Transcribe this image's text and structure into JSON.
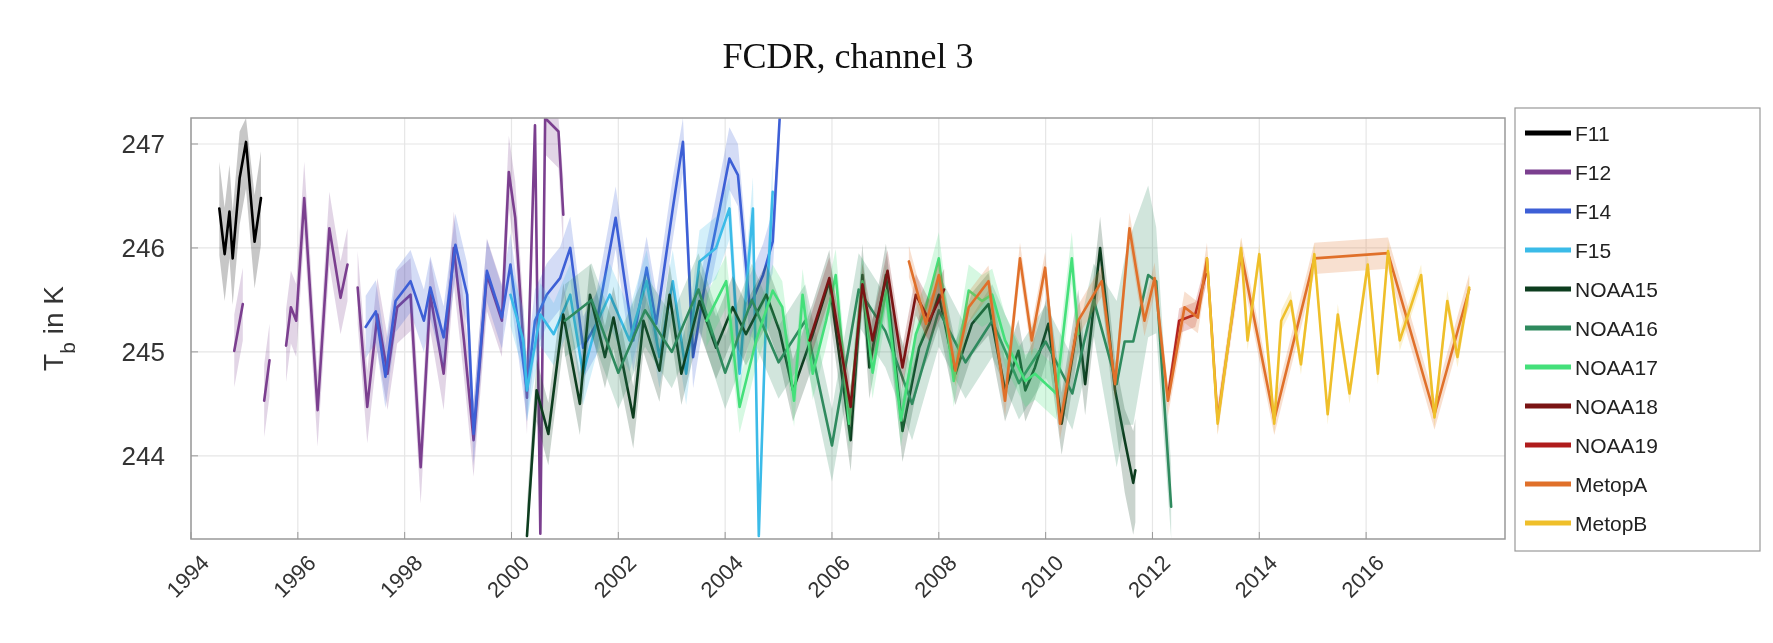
{
  "chart_data": {
    "type": "line",
    "title": "FCDR, channel 3",
    "ylabel": "T$_{b}$ in K",
    "xlim": [
      1994,
      2018.6
    ],
    "ylim": [
      243.2,
      247.25
    ],
    "xticks": [
      1994,
      1996,
      1998,
      2000,
      2002,
      2004,
      2006,
      2008,
      2010,
      2012,
      2014,
      2016
    ],
    "yticks": [
      244,
      245,
      246,
      247
    ],
    "grid": true,
    "legend": "right",
    "line_style": "solid",
    "marker": "none",
    "series": [
      {
        "name": "F11",
        "color": "#000000",
        "x": [
          1994.53,
          1994.63,
          1994.72,
          1994.78,
          1994.91,
          1995.03,
          1995.19,
          1995.31
        ],
        "values": [
          246.38,
          245.94,
          246.35,
          245.9,
          246.67,
          247.02,
          246.06,
          246.48
        ],
        "lower": [
          245.93,
          245.49,
          245.9,
          245.45,
          246.22,
          246.57,
          245.61,
          246.03
        ],
        "upper": [
          246.83,
          246.39,
          246.8,
          246.35,
          247.12,
          247.25,
          246.51,
          246.93
        ]
      },
      {
        "name": "F12",
        "color": "#7b3f8f",
        "x": [
          1994.81,
          1994.97,
          1995.2,
          1995.37,
          1995.47,
          1995.6,
          1995.78,
          1995.87,
          1995.97,
          1996.12,
          1996.37,
          1996.59,
          1996.8,
          1996.93,
          1997.0,
          1997.12,
          1997.3,
          1997.49,
          1997.68,
          1997.86,
          1998.11,
          1998.3,
          1998.48,
          1998.73,
          1998.92,
          1999.11,
          1999.29,
          1999.54,
          1999.82,
          1999.95,
          2000.07,
          2000.29,
          2000.44,
          2000.54,
          2000.63,
          2000.88,
          2000.97
        ],
        "values": [
          245.01,
          245.46,
          null,
          244.53,
          244.92,
          null,
          245.06,
          245.43,
          245.3,
          246.48,
          244.44,
          246.19,
          245.52,
          245.84,
          null,
          245.62,
          244.47,
          245.36,
          244.79,
          245.43,
          245.55,
          243.89,
          245.55,
          244.79,
          246.0,
          245.11,
          244.15,
          245.74,
          245.3,
          246.73,
          246.29,
          244.56,
          247.18,
          243.25,
          247.25,
          247.12,
          246.32
        ],
        "lower": [
          244.66,
          245.11,
          null,
          244.18,
          244.57,
          null,
          244.71,
          245.08,
          244.95,
          246.13,
          244.09,
          245.84,
          245.17,
          245.49,
          null,
          245.27,
          244.12,
          245.01,
          244.44,
          245.08,
          245.2,
          243.54,
          245.2,
          244.44,
          245.65,
          244.76,
          243.8,
          245.39,
          244.95,
          246.38,
          245.94,
          244.21,
          246.83,
          243.2,
          246.9,
          246.77,
          245.97
        ],
        "upper": [
          245.36,
          245.81,
          null,
          244.88,
          245.27,
          null,
          245.41,
          245.78,
          245.65,
          246.83,
          244.79,
          246.54,
          245.87,
          246.19,
          null,
          245.97,
          244.82,
          245.71,
          245.14,
          245.78,
          245.9,
          244.24,
          245.9,
          245.14,
          246.35,
          245.46,
          244.5,
          246.09,
          245.65,
          247.08,
          246.64,
          244.91,
          247.25,
          243.6,
          247.25,
          247.25,
          246.67
        ]
      },
      {
        "name": "F14",
        "color": "#3d5fd6",
        "x": [
          1997.27,
          1997.46,
          1997.64,
          1997.83,
          1998.11,
          1998.36,
          1998.48,
          1998.73,
          1998.95,
          1999.17,
          1999.29,
          1999.54,
          1999.82,
          1999.98,
          2000.29,
          2000.44,
          2000.66,
          2000.91,
          2001.1,
          2001.34,
          2001.59,
          2001.95,
          2002.28,
          2002.53,
          2002.71,
          2003.02,
          2003.21,
          2003.4,
          2003.65,
          2003.9,
          2004.08,
          2004.24,
          2004.46,
          2004.71,
          2004.89,
          2005.02
        ],
        "values": [
          245.24,
          245.39,
          244.76,
          245.49,
          245.68,
          245.3,
          245.62,
          245.14,
          246.03,
          245.55,
          244.21,
          245.78,
          245.33,
          245.84,
          244.63,
          245.3,
          245.55,
          245.71,
          246.0,
          245.04,
          245.27,
          246.29,
          245.11,
          245.81,
          245.27,
          246.38,
          247.02,
          244.95,
          245.74,
          246.38,
          246.86,
          246.7,
          245.43,
          245.74,
          246.06,
          247.24
        ],
        "lower": [
          244.94,
          245.09,
          244.46,
          245.19,
          245.38,
          245,
          245.32,
          244.84,
          245.73,
          245.25,
          243.91,
          245.48,
          245.03,
          245.54,
          244.33,
          245,
          245.25,
          245.41,
          245.7,
          244.74,
          244.97,
          245.99,
          244.81,
          245.51,
          244.97,
          246.08,
          246.72,
          244.65,
          245.44,
          246.08,
          246.56,
          246.4,
          245.13,
          245.44,
          245.76,
          246.94
        ],
        "upper": [
          245.54,
          245.69,
          245.06,
          245.79,
          245.98,
          245.6,
          245.92,
          245.44,
          246.33,
          245.85,
          244.51,
          246.08,
          245.63,
          246.14,
          244.93,
          245.6,
          245.85,
          246.01,
          246.3,
          245.34,
          245.57,
          246.59,
          245.41,
          246.11,
          245.57,
          246.68,
          247.25,
          245.25,
          246.04,
          246.68,
          247.16,
          247,
          245.73,
          246.04,
          246.36,
          247.25
        ]
      },
      {
        "name": "F15",
        "color": "#3bbbe8",
        "x": [
          1999.98,
          2000.22,
          2000.29,
          2000.54,
          2000.79,
          2001.1,
          2001.34,
          2001.59,
          2001.84,
          2002.21,
          2002.53,
          2002.77,
          2003.02,
          2003.27,
          2003.52,
          2003.83,
          2004.08,
          2004.27,
          2004.52,
          2004.63,
          2004.77,
          2004.89
        ],
        "values": [
          245.55,
          245.11,
          244.63,
          245.36,
          245.17,
          245.55,
          244.79,
          245.27,
          245.55,
          245.11,
          245.68,
          244.95,
          245.68,
          244.79,
          245.87,
          246.0,
          246.38,
          244.79,
          246.38,
          243.23,
          245.43,
          246.54
        ],
        "lower": [
          245.25,
          244.81,
          244.33,
          245.06,
          244.87,
          245.25,
          244.49,
          244.97,
          245.25,
          244.81,
          245.38,
          244.65,
          245.38,
          244.49,
          245.57,
          245.7,
          246.08,
          244.49,
          246.08,
          243.2,
          245.13,
          246.24
        ],
        "upper": [
          245.85,
          245.41,
          244.93,
          245.66,
          245.47,
          245.85,
          245.09,
          245.57,
          245.85,
          245.41,
          245.98,
          245.25,
          245.98,
          245.09,
          246.17,
          246.3,
          246.68,
          245.09,
          246.68,
          243.53,
          245.73,
          246.84
        ]
      },
      {
        "name": "NOAA15",
        "color": "#0d3d1f",
        "x": [
          2000.29,
          2000.47,
          2000.69,
          2000.97,
          2001.28,
          2001.47,
          2001.75,
          2001.91,
          2002.28,
          2002.47,
          2002.77,
          2002.96,
          2003.18,
          2003.52,
          2003.83,
          2004.14,
          2004.39,
          2004.77,
          2005.02,
          2005.27,
          2005.64,
          2005.95,
          2006.35,
          2006.57,
          2006.7,
          2007.01,
          2007.32,
          2007.63,
          2007.82,
          2008.0,
          2008.31,
          2008.62,
          2008.93,
          2009.24,
          2009.49,
          2009.62,
          2009.8,
          2010.05,
          2010.3,
          2010.61,
          2010.74,
          2011.02,
          2011.3,
          2011.48,
          2011.64,
          2011.68
        ],
        "values": [
          243.23,
          244.63,
          244.21,
          245.36,
          244.5,
          245.55,
          244.95,
          245.33,
          244.37,
          245.3,
          244.82,
          245.55,
          244.79,
          245.49,
          245.04,
          245.43,
          245.17,
          245.55,
          245.2,
          244.63,
          245.17,
          245.68,
          244.15,
          245.74,
          244.85,
          245.74,
          244.24,
          245.04,
          245.27,
          245.55,
          244.79,
          245.27,
          245.46,
          244.63,
          245.01,
          244.63,
          244.85,
          245.27,
          244.31,
          245.3,
          244.69,
          246.0,
          244.63,
          244.15,
          243.74,
          243.86
        ],
        "lower": [
          243.2,
          244.33,
          243.91,
          245.06,
          244.2,
          245.25,
          244.65,
          245.03,
          244.07,
          245,
          244.52,
          245.25,
          244.49,
          245.19,
          244.74,
          245.13,
          244.87,
          245.25,
          244.9,
          244.33,
          244.87,
          245.38,
          243.85,
          245.44,
          244.55,
          245.44,
          243.94,
          244.74,
          244.97,
          245.25,
          244.49,
          244.97,
          245.16,
          244.33,
          244.71,
          244.33,
          244.55,
          244.97,
          244.01,
          245,
          244.39,
          245.7,
          244.33,
          243.65,
          243.24,
          243.36
        ],
        "upper": [
          243.53,
          244.93,
          244.51,
          245.66,
          244.8,
          245.85,
          245.25,
          245.63,
          244.67,
          245.6,
          245.12,
          245.85,
          245.09,
          245.79,
          245.34,
          245.73,
          245.47,
          245.85,
          245.5,
          244.93,
          245.47,
          245.98,
          244.45,
          246.04,
          245.15,
          246.04,
          244.54,
          245.34,
          245.57,
          245.85,
          245.09,
          245.57,
          245.76,
          244.93,
          245.31,
          244.93,
          245.15,
          245.57,
          244.61,
          245.6,
          244.99,
          246.3,
          244.93,
          244.45,
          244.24,
          244.36
        ]
      },
      {
        "name": "NOAA16",
        "color": "#2f8a5e",
        "x": [
          2001.0,
          2001.5,
          2002.0,
          2002.5,
          2003.0,
          2003.5,
          2004.0,
          2004.5,
          2005.0,
          2005.5,
          2006.0,
          2006.5,
          2007.0,
          2007.5,
          2008.0,
          2008.5,
          2009.0,
          2009.5,
          2010.0,
          2010.5,
          2010.9,
          2011.33,
          2011.48,
          2011.64,
          2011.92,
          2012.07,
          2012.35
        ],
        "values": [
          245.3,
          245.5,
          244.8,
          245.4,
          245.0,
          245.6,
          244.8,
          245.5,
          244.9,
          245.3,
          244.1,
          245.6,
          245.2,
          244.5,
          245.4,
          244.9,
          245.3,
          244.7,
          245.1,
          244.6,
          245.5,
          244.69,
          245.1,
          245.1,
          245.74,
          245.68,
          243.51
        ],
        "lower": [
          244.95,
          245.15,
          244.45,
          245.05,
          244.65,
          245.25,
          244.45,
          245.15,
          244.55,
          244.95,
          243.75,
          245.25,
          244.85,
          244.15,
          245.05,
          244.55,
          244.95,
          244.35,
          244.75,
          244.25,
          245.15,
          243.89,
          244.3,
          244.3,
          245.14,
          245.18,
          243.2
        ],
        "upper": [
          245.65,
          245.85,
          245.15,
          245.75,
          245.35,
          245.95,
          245.15,
          245.85,
          245.25,
          245.65,
          244.45,
          245.95,
          245.55,
          244.85,
          245.75,
          245.25,
          245.65,
          245.05,
          245.45,
          244.95,
          245.85,
          245.49,
          245.9,
          246.2,
          246.6,
          246.2,
          243.9
        ]
      },
      {
        "name": "NOAA17",
        "color": "#44e07a",
        "x": [
          2003.65,
          2004.02,
          2004.27,
          2004.58,
          2004.89,
          2005.07,
          2005.29,
          2005.45,
          2005.64,
          2005.89,
          2006.07,
          2006.32,
          2006.57,
          2006.76,
          2007.01,
          2007.29,
          2007.57,
          2007.76,
          2008.0,
          2008.28,
          2008.56,
          2008.81,
          2009.0,
          2009.24,
          2009.62,
          2009.8,
          2010.2,
          2010.49,
          2010.61
        ],
        "values": [
          245.3,
          245.68,
          244.47,
          245.11,
          245.59,
          245.43,
          244.53,
          245.55,
          244.79,
          245.3,
          245.74,
          244.31,
          245.68,
          244.8,
          245.59,
          244.34,
          245.17,
          245.43,
          245.9,
          244.72,
          245.59,
          245.49,
          245.55,
          245.11,
          244.72,
          244.79,
          244.6,
          245.9,
          245.17
        ],
        "lower": [
          245.05,
          245.43,
          244.22,
          244.86,
          245.34,
          245.18,
          244.28,
          245.3,
          244.54,
          245.05,
          245.49,
          244.06,
          245.43,
          244.55,
          245.34,
          244.09,
          244.92,
          245.18,
          245.65,
          244.47,
          245.34,
          245.24,
          245.3,
          244.86,
          244.47,
          244.54,
          244.35,
          245.65,
          244.92
        ],
        "upper": [
          245.55,
          245.93,
          244.72,
          245.36,
          245.84,
          245.68,
          244.78,
          245.8,
          245.04,
          245.55,
          245.99,
          244.56,
          245.93,
          245.05,
          245.84,
          244.59,
          245.42,
          245.68,
          246.15,
          244.97,
          245.84,
          245.74,
          245.8,
          245.36,
          244.97,
          245.04,
          244.85,
          246.15,
          245.42
        ]
      },
      {
        "name": "NOAA18",
        "color": "#7a1414",
        "x": [
          2005.58,
          2005.95,
          2006.35,
          2006.57,
          2006.76,
          2007.04,
          2007.32,
          2007.57,
          2007.82,
          2008.1
        ],
        "values": [
          245.11,
          245.71,
          244.47,
          245.65,
          245.11,
          245.78,
          244.85,
          245.55,
          245.3,
          245.6
        ],
        "lower": [
          244.91,
          245.51,
          244.27,
          245.45,
          244.91,
          245.58,
          244.65,
          245.35,
          245.1,
          245.4
        ],
        "upper": [
          245.31,
          245.91,
          244.67,
          245.85,
          245.31,
          245.98,
          245.05,
          245.75,
          245.5,
          245.8
        ]
      },
      {
        "name": "NOAA19",
        "color": "#b01c1c",
        "x": [
          2012.3,
          2012.5,
          2012.8,
          2013.0
        ],
        "values": [
          244.6,
          245.3,
          245.36,
          245.75
        ],
        "lower": [
          244.48,
          245.18,
          245.24,
          245.63
        ],
        "upper": [
          244.72,
          245.42,
          245.48,
          245.87
        ]
      },
      {
        "name": "MetopA",
        "color": "#e0702a",
        "x": [
          2007.44,
          2007.76,
          2008.0,
          2008.31,
          2008.56,
          2008.93,
          2009.24,
          2009.52,
          2009.74,
          2009.99,
          2010.27,
          2010.61,
          2011.05,
          2011.3,
          2011.57,
          2011.85,
          2012.04,
          2012.29,
          2012.6,
          2012.85,
          2013.02,
          2013.22,
          2013.66,
          2014.28,
          2015.03,
          2016.41,
          2017.28,
          2017.93
        ],
        "values": [
          245.87,
          245.27,
          245.74,
          244.82,
          245.43,
          245.68,
          244.53,
          245.9,
          245.11,
          245.81,
          244.31,
          245.3,
          245.68,
          244.69,
          246.19,
          245.3,
          245.71,
          244.53,
          245.43,
          245.33,
          245.9,
          244.35,
          245.95,
          244.35,
          245.9,
          245.95,
          244.4,
          245.6
        ],
        "lower": [
          245.72,
          245.12,
          245.59,
          244.67,
          245.28,
          245.53,
          244.38,
          245.75,
          244.96,
          245.66,
          244.16,
          245.15,
          245.53,
          244.54,
          246.04,
          245.15,
          245.56,
          244.38,
          245.28,
          245.18,
          245.75,
          244.2,
          245.8,
          244.2,
          245.75,
          245.8,
          244.25,
          245.45
        ],
        "upper": [
          246.02,
          245.42,
          245.89,
          244.97,
          245.58,
          245.83,
          244.68,
          246.05,
          245.26,
          245.96,
          244.46,
          245.45,
          245.83,
          244.84,
          246.34,
          245.45,
          245.86,
          244.68,
          245.58,
          245.48,
          246.05,
          244.5,
          246.1,
          244.5,
          246.05,
          246.1,
          244.55,
          245.75
        ]
      },
      {
        "name": "MetopB",
        "color": "#efbf2a",
        "x": [
          2013.02,
          2013.22,
          2013.66,
          2013.78,
          2014.0,
          2014.28,
          2014.41,
          2014.59,
          2014.78,
          2015.03,
          2015.28,
          2015.47,
          2015.69,
          2016.03,
          2016.22,
          2016.41,
          2016.63,
          2017.03,
          2017.28,
          2017.52,
          2017.71,
          2017.93
        ],
        "values": [
          245.9,
          244.31,
          246.0,
          245.11,
          245.94,
          244.31,
          245.3,
          245.49,
          244.88,
          245.94,
          244.4,
          245.36,
          244.6,
          245.84,
          244.79,
          245.97,
          245.11,
          245.74,
          244.37,
          245.49,
          244.95,
          245.62
        ],
        "lower": [
          245.8,
          244.21,
          245.9,
          245.01,
          245.84,
          244.21,
          245.2,
          245.39,
          244.78,
          245.84,
          244.3,
          245.26,
          244.5,
          245.74,
          244.69,
          245.87,
          245.01,
          245.64,
          244.27,
          245.39,
          244.85,
          245.52
        ],
        "upper": [
          246,
          244.41,
          246.1,
          245.21,
          246.04,
          244.41,
          245.4,
          245.59,
          244.98,
          246.04,
          244.5,
          245.46,
          244.7,
          245.94,
          244.89,
          246.07,
          245.21,
          245.84,
          244.47,
          245.59,
          245.05,
          245.72
        ]
      }
    ]
  }
}
